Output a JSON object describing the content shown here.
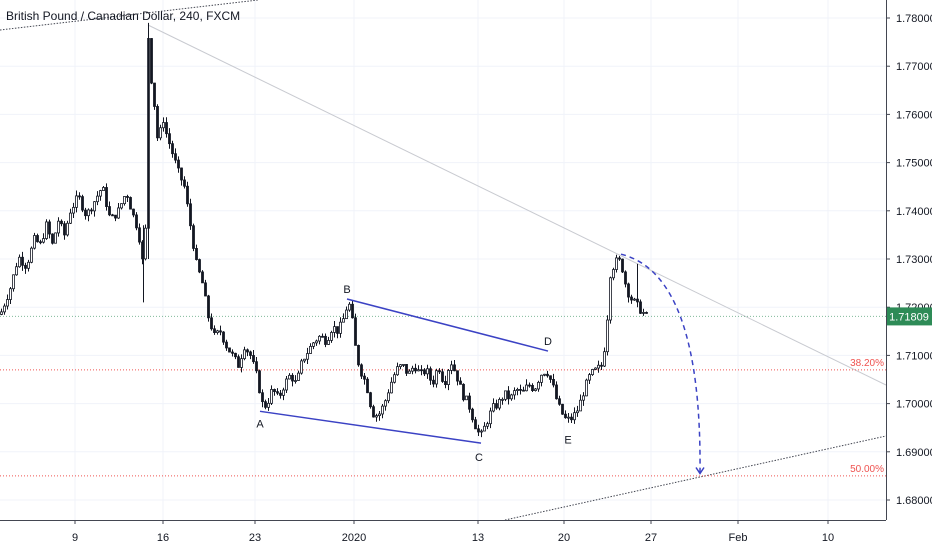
{
  "window": {
    "title": "British Pound / Canadian Dollar, 240, FXCM"
  },
  "colors": {
    "candle": "#131722",
    "pattern_line": "#3b42c4",
    "fib_line": "#ef5350",
    "price_badge": "#2e8b57",
    "grid": "#e0e3eb",
    "trend_line": "#b2b5be"
  },
  "chart_data": {
    "type": "candlestick",
    "title": "British Pound / Canadian Dollar, 240, FXCM",
    "y_axis": {
      "ticks": [
        "1.78000",
        "1.77000",
        "1.76000",
        "1.75000",
        "1.74000",
        "1.73000",
        "1.72000",
        "1.71000",
        "1.70000",
        "1.69000",
        "1.68000"
      ],
      "range": [
        1.6775,
        1.7813
      ]
    },
    "x_axis": {
      "ticks": [
        "9",
        "16",
        "23",
        "2020",
        "13",
        "20",
        "27",
        "Feb",
        "10"
      ]
    },
    "current_price": "1.71809",
    "fib_levels": [
      {
        "label": "38.20%",
        "price": 1.707
      },
      {
        "label": "50.00%",
        "price": 1.685
      }
    ],
    "pattern_points": [
      {
        "label": "A",
        "date": "Dec 23",
        "price": 1.6984
      },
      {
        "label": "B",
        "date": "Jan 1",
        "price": 1.7217
      },
      {
        "label": "C",
        "date": "Jan 14",
        "price": 1.6918
      },
      {
        "label": "D",
        "date": "Jan 19",
        "price": 1.7109
      },
      {
        "label": "E",
        "date": "Jan 21",
        "price": 1.6955
      }
    ],
    "projection": {
      "from_price": 1.731,
      "to_price": 1.6855,
      "target_date": "Jan 31"
    },
    "path": [
      [
        0,
        1.7185
      ],
      [
        10,
        1.724
      ],
      [
        18,
        1.7305
      ],
      [
        26,
        1.7285
      ],
      [
        34,
        1.734
      ],
      [
        40,
        1.733
      ],
      [
        46,
        1.737
      ],
      [
        52,
        1.733
      ],
      [
        58,
        1.738
      ],
      [
        64,
        1.735
      ],
      [
        70,
        1.74
      ],
      [
        78,
        1.743
      ],
      [
        86,
        1.739
      ],
      [
        94,
        1.742
      ],
      [
        102,
        1.745
      ],
      [
        110,
        1.738
      ],
      [
        118,
        1.74
      ],
      [
        126,
        1.744
      ],
      [
        132,
        1.7395
      ],
      [
        138,
        1.736
      ],
      [
        143,
        1.728
      ],
      [
        146,
        1.74
      ],
      [
        148,
        1.776
      ],
      [
        150,
        1.769
      ],
      [
        154,
        1.762
      ],
      [
        158,
        1.753
      ],
      [
        162,
        1.76
      ],
      [
        166,
        1.756
      ],
      [
        172,
        1.752
      ],
      [
        178,
        1.748
      ],
      [
        184,
        1.745
      ],
      [
        190,
        1.737
      ],
      [
        196,
        1.729
      ],
      [
        202,
        1.725
      ],
      [
        208,
        1.718
      ],
      [
        214,
        1.714
      ],
      [
        220,
        1.715
      ],
      [
        226,
        1.712
      ],
      [
        232,
        1.71
      ],
      [
        238,
        1.708
      ],
      [
        244,
        1.712
      ],
      [
        250,
        1.71
      ],
      [
        256,
        1.706
      ],
      [
        262,
        1.7
      ],
      [
        266,
        1.6995
      ],
      [
        272,
        1.703
      ],
      [
        278,
        1.701
      ],
      [
        284,
        1.704
      ],
      [
        290,
        1.706
      ],
      [
        296,
        1.704
      ],
      [
        302,
        1.709
      ],
      [
        308,
        1.711
      ],
      [
        314,
        1.713
      ],
      [
        320,
        1.714
      ],
      [
        326,
        1.713
      ],
      [
        332,
        1.716
      ],
      [
        338,
        1.715
      ],
      [
        344,
        1.718
      ],
      [
        348,
        1.7215
      ],
      [
        352,
        1.717
      ],
      [
        356,
        1.71
      ],
      [
        360,
        1.707
      ],
      [
        366,
        1.704
      ],
      [
        372,
        1.698
      ],
      [
        378,
        1.6975
      ],
      [
        384,
        1.7
      ],
      [
        390,
        1.704
      ],
      [
        396,
        1.707
      ],
      [
        402,
        1.708
      ],
      [
        408,
        1.706
      ],
      [
        414,
        1.708
      ],
      [
        420,
        1.706
      ],
      [
        426,
        1.707
      ],
      [
        432,
        1.704
      ],
      [
        438,
        1.708
      ],
      [
        444,
        1.704
      ],
      [
        450,
        1.709
      ],
      [
        456,
        1.706
      ],
      [
        462,
        1.702
      ],
      [
        468,
        1.7
      ],
      [
        474,
        1.696
      ],
      [
        480,
        1.693
      ],
      [
        486,
        1.696
      ],
      [
        492,
        1.699
      ],
      [
        498,
        1.7
      ],
      [
        504,
        1.702
      ],
      [
        510,
        1.701
      ],
      [
        516,
        1.703
      ],
      [
        522,
        1.702
      ],
      [
        528,
        1.704
      ],
      [
        534,
        1.703
      ],
      [
        540,
        1.706
      ],
      [
        546,
        1.707
      ],
      [
        552,
        1.704
      ],
      [
        556,
        1.701
      ],
      [
        560,
        1.6985
      ],
      [
        566,
        1.6965
      ],
      [
        572,
        1.697
      ],
      [
        578,
        1.699
      ],
      [
        584,
        1.703
      ],
      [
        590,
        1.706
      ],
      [
        596,
        1.707
      ],
      [
        602,
        1.708
      ],
      [
        606,
        1.715
      ],
      [
        610,
        1.727
      ],
      [
        614,
        1.729
      ],
      [
        618,
        1.73
      ],
      [
        622,
        1.728
      ],
      [
        626,
        1.724
      ],
      [
        630,
        1.722
      ],
      [
        634,
        1.721
      ],
      [
        638,
        1.72
      ],
      [
        642,
        1.719
      ],
      [
        646,
        1.7181
      ]
    ]
  }
}
